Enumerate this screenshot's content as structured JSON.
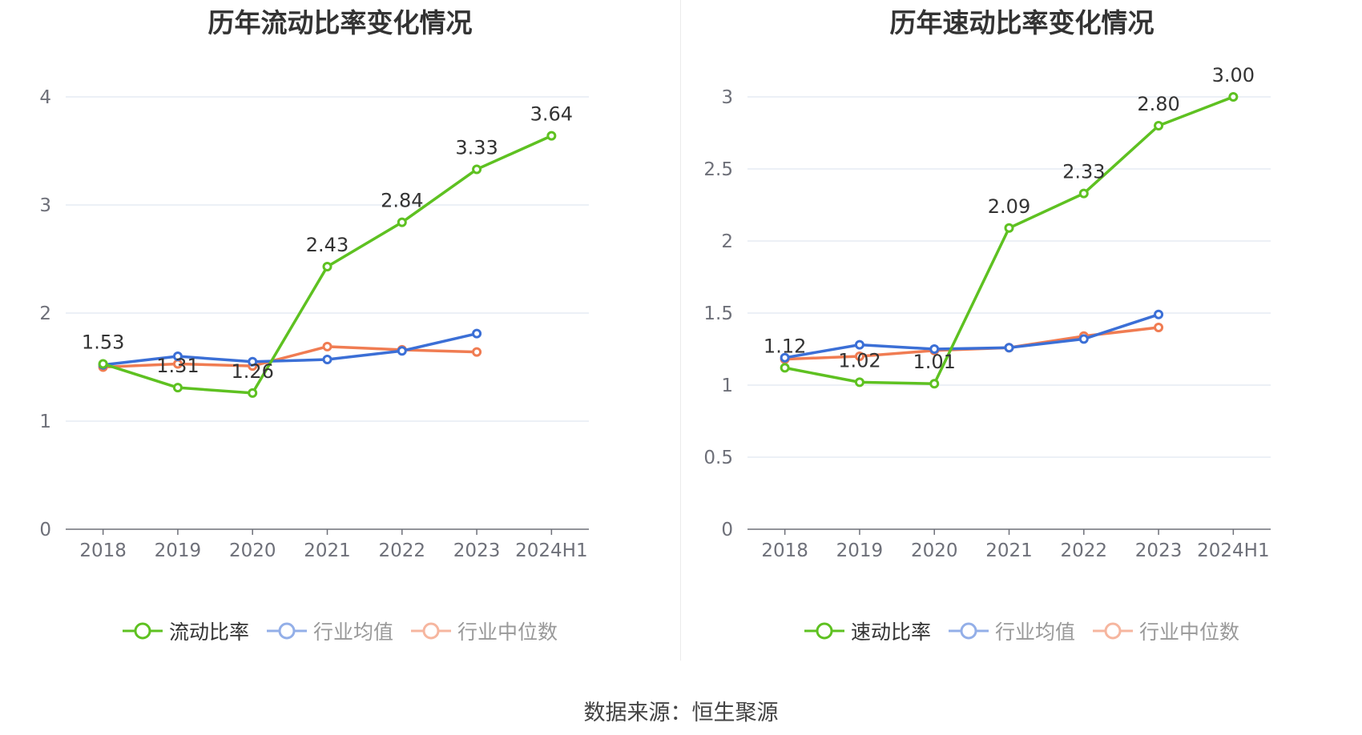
{
  "charts": [
    {
      "title": "历年流动比率变化情况",
      "legend": [
        {
          "label": "流动比率",
          "color": "#5ec121",
          "dim": false
        },
        {
          "label": "行业均值",
          "color": "#3b6fd6",
          "dim": true
        },
        {
          "label": "行业中位数",
          "color": "#f07c52",
          "dim": true
        }
      ]
    },
    {
      "title": "历年速动比率变化情况",
      "legend": [
        {
          "label": "速动比率",
          "color": "#5ec121",
          "dim": false
        },
        {
          "label": "行业均值",
          "color": "#3b6fd6",
          "dim": true
        },
        {
          "label": "行业中位数",
          "color": "#f07c52",
          "dim": true
        }
      ]
    }
  ],
  "source": "数据来源：恒生聚源",
  "chart_data": [
    {
      "type": "line",
      "title": "历年流动比率变化情况",
      "categories": [
        "2018",
        "2019",
        "2020",
        "2021",
        "2022",
        "2023",
        "2024H1"
      ],
      "ylim": [
        0,
        4
      ],
      "yticks": [
        "0",
        "1",
        "2",
        "3",
        "4"
      ],
      "ytick_values": [
        0,
        1,
        2,
        3,
        4
      ],
      "grid": true,
      "legend_position": "bottom",
      "series": [
        {
          "name": "流动比率",
          "color": "#5ec121",
          "values": [
            1.53,
            1.31,
            1.26,
            2.43,
            2.84,
            3.33,
            3.64
          ],
          "labels": [
            "1.53",
            "1.31",
            "1.26",
            "2.43",
            "2.84",
            "3.33",
            "3.64"
          ]
        },
        {
          "name": "行业均值",
          "color": "#3b6fd6",
          "values": [
            1.52,
            1.6,
            1.55,
            1.57,
            1.65,
            1.81,
            null
          ]
        },
        {
          "name": "行业中位数",
          "color": "#f07c52",
          "values": [
            1.5,
            1.53,
            1.51,
            1.69,
            1.66,
            1.64,
            null
          ]
        }
      ]
    },
    {
      "type": "line",
      "title": "历年速动比率变化情况",
      "categories": [
        "2018",
        "2019",
        "2020",
        "2021",
        "2022",
        "2023",
        "2024H1"
      ],
      "ylim": [
        0,
        3
      ],
      "yticks": [
        "0",
        "0.5",
        "1",
        "1.5",
        "2",
        "2.5",
        "3"
      ],
      "ytick_values": [
        0,
        0.5,
        1,
        1.5,
        2,
        2.5,
        3
      ],
      "grid": true,
      "legend_position": "bottom",
      "series": [
        {
          "name": "速动比率",
          "color": "#5ec121",
          "values": [
            1.12,
            1.02,
            1.01,
            2.09,
            2.33,
            2.8,
            3.0
          ],
          "labels": [
            "1.12",
            "1.02",
            "1.01",
            "2.09",
            "2.33",
            "2.80",
            "3.00"
          ]
        },
        {
          "name": "行业均值",
          "color": "#3b6fd6",
          "values": [
            1.19,
            1.28,
            1.25,
            1.26,
            1.32,
            1.49,
            null
          ]
        },
        {
          "name": "行业中位数",
          "color": "#f07c52",
          "values": [
            1.18,
            1.2,
            1.24,
            1.26,
            1.34,
            1.4,
            null
          ]
        }
      ]
    }
  ]
}
